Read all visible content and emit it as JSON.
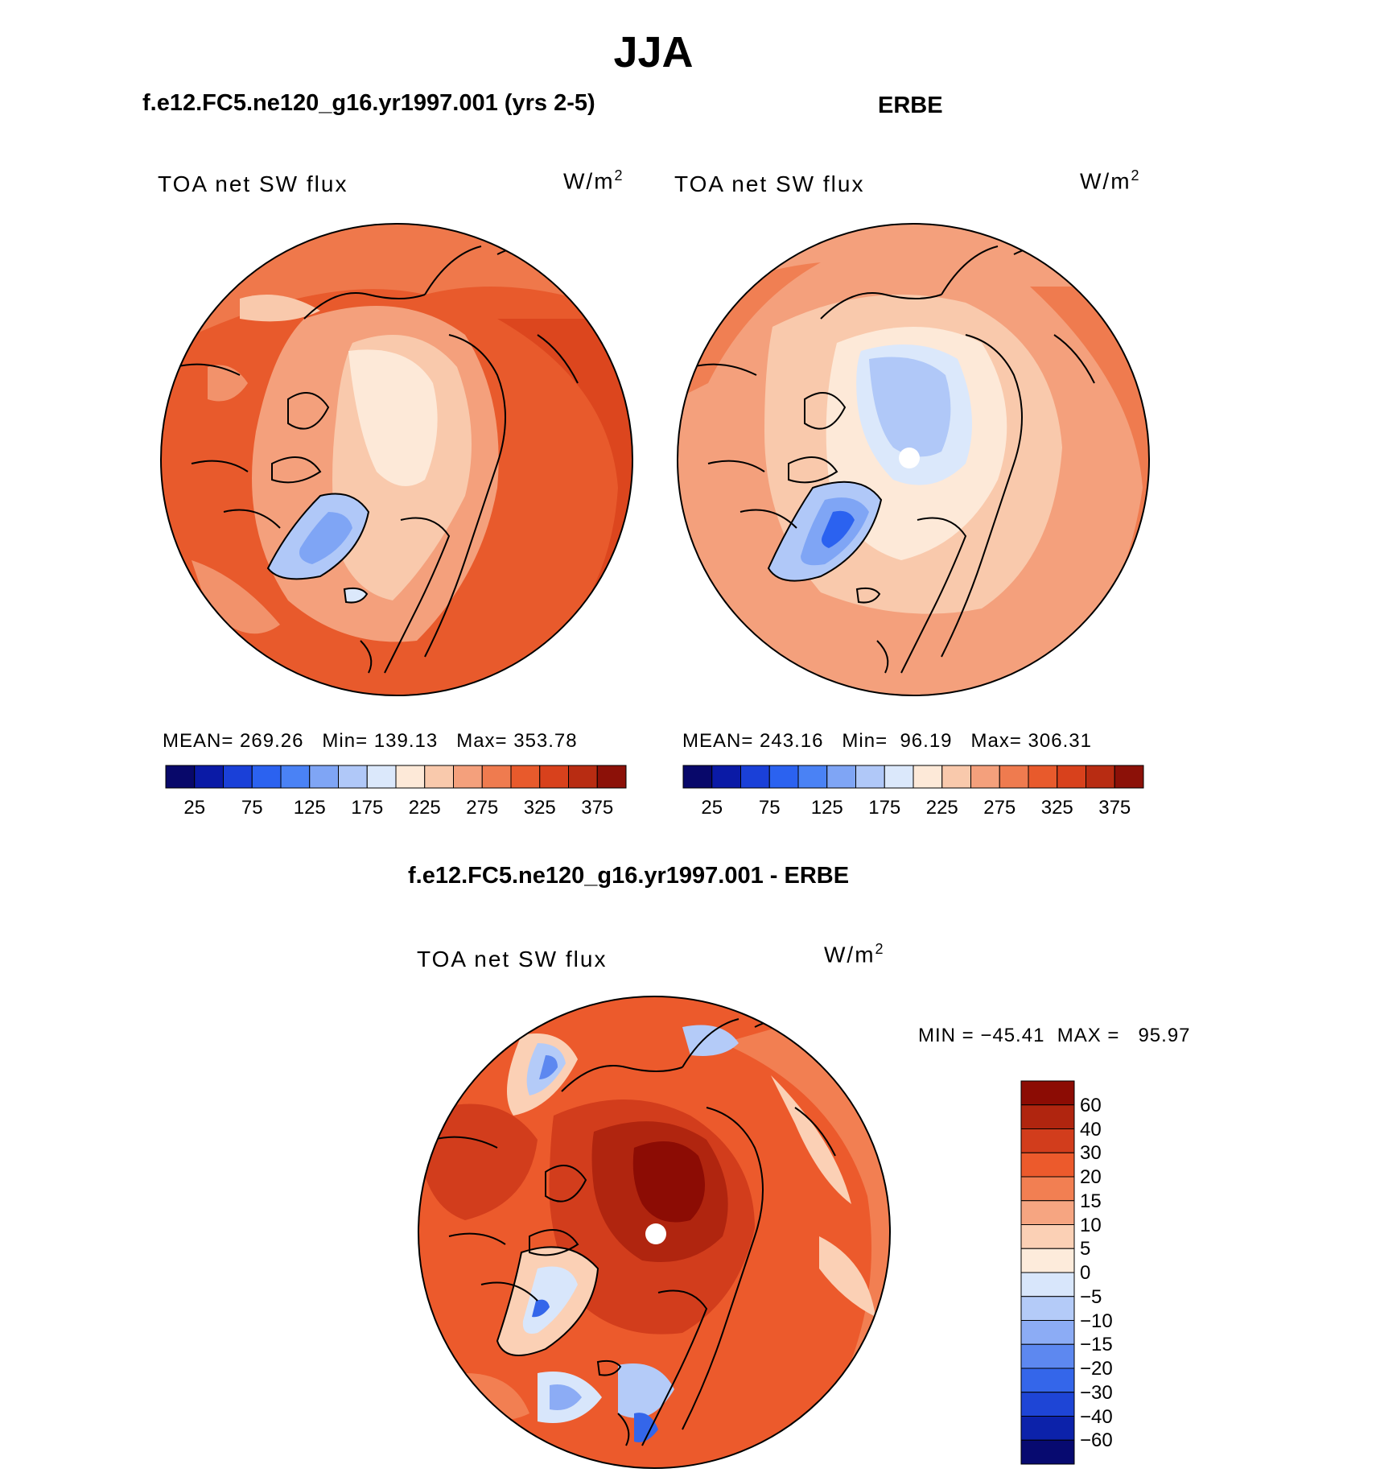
{
  "title": "JJA",
  "panels": [
    {
      "heading": "f.e12.FC5.ne120_g16.yr1997.001 (yrs 2-5)",
      "plot_label": "TOA net SW flux",
      "units_base": "W/m",
      "units_exp": "2",
      "stats": "MEAN= 269.26   Min= 139.13   Max= 353.78",
      "colorbar": {
        "colors": [
          "#08086a",
          "#0a1aa6",
          "#1a40d8",
          "#2b62f0",
          "#4a82f5",
          "#7fa5f5",
          "#b0c8f8",
          "#dbe8fb",
          "#fde9d8",
          "#f9c9ac",
          "#f4a07c",
          "#ef7b4f",
          "#e85a2c",
          "#d8411c",
          "#b82c12",
          "#8c1108"
        ],
        "labels": [
          "25",
          "75",
          "125",
          "175",
          "225",
          "275",
          "325",
          "375"
        ]
      }
    },
    {
      "heading": "ERBE",
      "plot_label": "TOA net SW flux",
      "units_base": "W/m",
      "units_exp": "2",
      "stats": "MEAN= 243.16   Min=  96.19   Max= 306.31",
      "colorbar": {
        "colors": [
          "#08086a",
          "#0a1aa6",
          "#1a40d8",
          "#2b62f0",
          "#4a82f5",
          "#7fa5f5",
          "#b0c8f8",
          "#dbe8fb",
          "#fde9d8",
          "#f9c9ac",
          "#f4a07c",
          "#ef7b4f",
          "#e85a2c",
          "#d8411c",
          "#b82c12",
          "#8c1108"
        ],
        "labels": [
          "25",
          "75",
          "125",
          "175",
          "225",
          "275",
          "325",
          "375"
        ]
      }
    }
  ],
  "difference": {
    "heading": "f.e12.FC5.ne120_g16.yr1997.001 - ERBE",
    "plot_label": "TOA net SW flux",
    "units_base": "W/m",
    "units_exp": "2",
    "stats": "MIN = −45.41  MAX =   95.97",
    "colorbar": {
      "colors": [
        "#8c0c04",
        "#b0250f",
        "#d23d1c",
        "#ec5a2c",
        "#f27f52",
        "#f6a581",
        "#fbd0b5",
        "#fdebdb",
        "#d8e6fb",
        "#b4cbf8",
        "#8cacf5",
        "#5d88f0",
        "#3466ea",
        "#1e45d6",
        "#0c22aa",
        "#070a70"
      ],
      "labels": [
        "60",
        "40",
        "30",
        "20",
        "15",
        "10",
        "5",
        "0",
        "−5",
        "−10",
        "−15",
        "−20",
        "−30",
        "−40",
        "−60"
      ]
    }
  },
  "map_colors": {
    "dark_red": "#d84a24",
    "orange": "#ea6a3c",
    "salmon": "#f39a74",
    "light_salmon": "#f8c2a2",
    "cream": "#fde9d8",
    "light_blue": "#b8cdf8",
    "mid_blue": "#7fa2f3",
    "blue": "#3f6fe9",
    "deep_red": "#a61808",
    "maroon": "#8a0f05"
  }
}
